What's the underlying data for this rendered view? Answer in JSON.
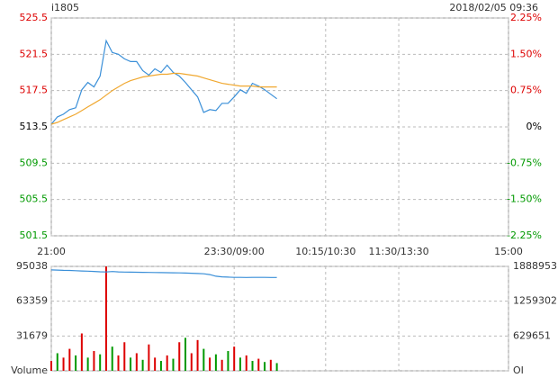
{
  "chart_data": [
    {
      "type": "line",
      "title": "i1805",
      "subtitle": "2018/02/05 09:36",
      "x": [
        0,
        5,
        10,
        15,
        20,
        25,
        30,
        35,
        40,
        45,
        50,
        55,
        60,
        65,
        70,
        75,
        80,
        85,
        90,
        95,
        100,
        105,
        110,
        115,
        120,
        125,
        130,
        135,
        140,
        145,
        150,
        155,
        160,
        165,
        170,
        175,
        180,
        185
      ],
      "xlim": [
        0,
        375
      ],
      "xticks": [
        {
          "value": 0,
          "label": "21:00"
        },
        {
          "value": 150,
          "label": "23:30/09:00"
        },
        {
          "value": 225,
          "label": "10:15/10:30"
        },
        {
          "value": 285,
          "label": "11:30/13:30"
        },
        {
          "value": 375,
          "label": "15:00"
        }
      ],
      "ylim": [
        501.5,
        525.5
      ],
      "yticks": [
        501.5,
        505.5,
        509.5,
        513.5,
        517.5,
        521.5,
        525.5
      ],
      "y2lim": [
        -2.25,
        2.25
      ],
      "y2ticks": [
        {
          "value": -2.25,
          "label": "-2.25%"
        },
        {
          "value": -1.5,
          "label": "-1.50%"
        },
        {
          "value": -0.75,
          "label": "-0.75%"
        },
        {
          "value": 0,
          "label": "0%"
        },
        {
          "value": 0.75,
          "label": "0.75%"
        },
        {
          "value": 1.5,
          "label": "1.50%"
        },
        {
          "value": 2.25,
          "label": "2.25%"
        }
      ],
      "grid": true,
      "series": [
        {
          "color": "#3a8fd8",
          "values": [
            513.8,
            514.6,
            514.9,
            515.4,
            515.6,
            517.6,
            518.4,
            517.9,
            519.1,
            523.0,
            521.7,
            521.5,
            521.0,
            520.7,
            520.7,
            519.7,
            519.2,
            519.9,
            519.5,
            520.3,
            519.5,
            519.1,
            518.4,
            517.6,
            516.8,
            515.1,
            515.4,
            515.3,
            516.1,
            516.1,
            516.8,
            517.6,
            517.2,
            518.3,
            518.0,
            517.6,
            517.1,
            516.6
          ]
        },
        {
          "color": "#f0a830",
          "values": [
            513.8,
            514.0,
            514.3,
            514.6,
            514.9,
            515.3,
            515.7,
            516.1,
            516.5,
            517.0,
            517.5,
            517.9,
            518.3,
            518.6,
            518.8,
            519.0,
            519.1,
            519.2,
            519.3,
            519.3,
            519.4,
            519.4,
            519.3,
            519.2,
            519.1,
            518.9,
            518.7,
            518.5,
            518.3,
            518.2,
            518.1,
            518.0,
            518.0,
            518.0,
            517.9,
            517.9,
            517.9,
            517.9
          ]
        }
      ]
    },
    {
      "type": "bar",
      "x": [
        0,
        5,
        10,
        15,
        20,
        25,
        30,
        35,
        40,
        45,
        50,
        55,
        60,
        65,
        70,
        75,
        80,
        85,
        90,
        95,
        100,
        105,
        110,
        115,
        120,
        125,
        130,
        135,
        140,
        145,
        150,
        155,
        160,
        165,
        170,
        175,
        180,
        185
      ],
      "ylim": [
        0,
        95038
      ],
      "yticks": [
        {
          "value": 0,
          "label": "Volume"
        },
        31679,
        63359,
        95038
      ],
      "y2lim": [
        0,
        1888953
      ],
      "y2ticks": [
        {
          "value": 0,
          "label": "OI"
        },
        629651,
        1259302,
        1888953
      ],
      "series": [
        {
          "values": [
            9000,
            16000,
            12000,
            20000,
            14000,
            34000,
            12000,
            18000,
            15000,
            95000,
            22000,
            14000,
            26000,
            12000,
            16000,
            10000,
            24000,
            12000,
            9000,
            14000,
            11000,
            26000,
            30000,
            16000,
            28000,
            20000,
            12000,
            15000,
            10000,
            18000,
            22000,
            12000,
            14000,
            9000,
            11000,
            8000,
            10000,
            7000
          ],
          "colors": [
            "#d00",
            "#090",
            "#d00",
            "#d00",
            "#090",
            "#d00",
            "#090",
            "#d00",
            "#090",
            "#d00",
            "#090",
            "#d00",
            "#d00",
            "#090",
            "#d00",
            "#090",
            "#d00",
            "#d00",
            "#090",
            "#d00",
            "#090",
            "#d00",
            "#090",
            "#d00",
            "#d00",
            "#090",
            "#d00",
            "#090",
            "#d00",
            "#090",
            "#d00",
            "#090",
            "#d00",
            "#090",
            "#d00",
            "#090",
            "#d00",
            "#090"
          ]
        },
        {
          "axis": "y2",
          "color": "#3a8fd8",
          "values": [
            1826000,
            1822000,
            1818000,
            1815000,
            1811000,
            1806000,
            1802000,
            1797000,
            1792000,
            1788000,
            1796000,
            1790000,
            1786000,
            1784000,
            1783000,
            1781000,
            1780000,
            1779000,
            1777000,
            1775000,
            1773000,
            1771000,
            1768000,
            1765000,
            1760000,
            1755000,
            1740000,
            1712000,
            1700000,
            1695000,
            1690000,
            1690000,
            1688000,
            1690000,
            1690000,
            1690000,
            1689000,
            1689000
          ]
        }
      ]
    }
  ]
}
